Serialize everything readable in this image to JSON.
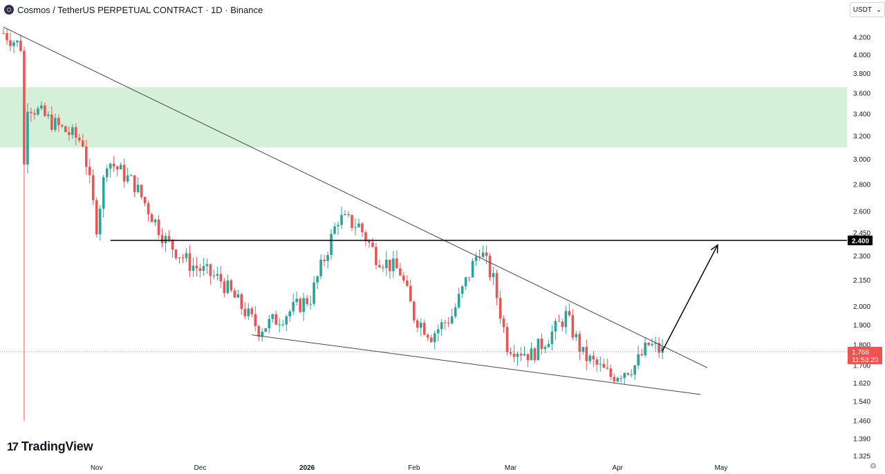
{
  "header": {
    "title": "Cosmos / TetherUS PERPETUAL CONTRACT · 1D · Binance",
    "currency": "USDT",
    "chevron_icon": "chevron-down-icon"
  },
  "branding": {
    "name": "TradingView",
    "icon": "tradingview-logo-icon"
  },
  "settings_icon": "gear-icon",
  "colors": {
    "up": "#26a69a",
    "down": "#ef5350",
    "zone": "#d4f0d8",
    "trendline": "#434651",
    "axis_text": "#131722"
  },
  "chart_data": {
    "type": "candlestick",
    "title": "Cosmos / TetherUS PERPETUAL CONTRACT · 1D · Binance",
    "y_axis": {
      "ticks": [
        "4.200",
        "4.000",
        "3.800",
        "3.600",
        "3.400",
        "3.200",
        "3.000",
        "2.800",
        "2.600",
        "2.450",
        "2.300",
        "2.150",
        "2.000",
        "1.900",
        "1.800",
        "1.700",
        "1.620",
        "1.540",
        "1.460",
        "1.390",
        "1.325"
      ],
      "scale": "log"
    },
    "x_axis": {
      "ticks": [
        "Nov",
        "Dec",
        "2026",
        "Feb",
        "Mar",
        "Apr",
        "May"
      ]
    },
    "current_price": {
      "value": "1.766",
      "countdown": "11:53:20"
    },
    "horizontal_level": {
      "value": "2.400"
    },
    "resistance_zone": {
      "low": 3.1,
      "high": 3.66
    },
    "descending_trendline": [
      {
        "date": "2025-10-05",
        "price": 4.32
      },
      {
        "date": "2026-04-27",
        "price": 1.69
      }
    ],
    "support_trendline": [
      {
        "date": "2025-12-16",
        "price": 1.85
      },
      {
        "date": "2026-04-25",
        "price": 1.57
      }
    ],
    "projection_arrow": {
      "from": {
        "date": "2026-04-14",
        "price": 1.77
      },
      "to": {
        "date": "2026-04-30",
        "price": 2.37
      }
    },
    "close_path": [
      {
        "date": "2025-10-05",
        "price": 4.25
      },
      {
        "date": "2025-10-10",
        "price": 4.1
      },
      {
        "date": "2025-10-11",
        "price": 2.95
      },
      {
        "date": "2025-10-12",
        "price": 3.5
      },
      {
        "date": "2025-10-20",
        "price": 3.3
      },
      {
        "date": "2025-10-28",
        "price": 3.15
      },
      {
        "date": "2025-11-01",
        "price": 2.5
      },
      {
        "date": "2025-11-04",
        "price": 3.0
      },
      {
        "date": "2025-11-12",
        "price": 2.8
      },
      {
        "date": "2025-11-21",
        "price": 2.4
      },
      {
        "date": "2025-11-28",
        "price": 2.25
      },
      {
        "date": "2025-12-07",
        "price": 2.15
      },
      {
        "date": "2025-12-18",
        "price": 1.88
      },
      {
        "date": "2025-12-25",
        "price": 1.95
      },
      {
        "date": "2026-01-02",
        "price": 2.05
      },
      {
        "date": "2026-01-10",
        "price": 2.55
      },
      {
        "date": "2026-01-16",
        "price": 2.5
      },
      {
        "date": "2026-01-21",
        "price": 2.3
      },
      {
        "date": "2026-01-28",
        "price": 2.2
      },
      {
        "date": "2026-02-01",
        "price": 1.95
      },
      {
        "date": "2026-02-06",
        "price": 1.85
      },
      {
        "date": "2026-02-12",
        "price": 1.95
      },
      {
        "date": "2026-02-20",
        "price": 2.35
      },
      {
        "date": "2026-02-24",
        "price": 2.15
      },
      {
        "date": "2026-02-28",
        "price": 1.8
      },
      {
        "date": "2026-03-07",
        "price": 1.75
      },
      {
        "date": "2026-03-14",
        "price": 1.88
      },
      {
        "date": "2026-03-17",
        "price": 1.95
      },
      {
        "date": "2026-03-22",
        "price": 1.75
      },
      {
        "date": "2026-03-30",
        "price": 1.65
      },
      {
        "date": "2026-04-06",
        "price": 1.7
      },
      {
        "date": "2026-04-10",
        "price": 1.8
      },
      {
        "date": "2026-04-14",
        "price": 1.766
      }
    ]
  }
}
